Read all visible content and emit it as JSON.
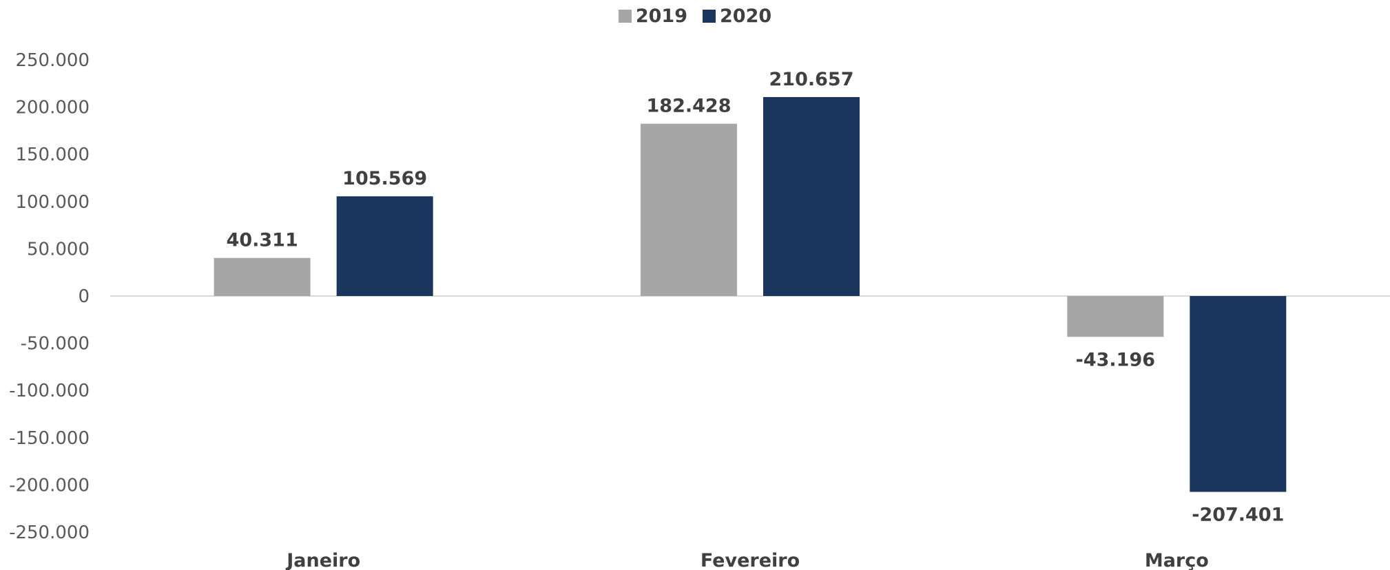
{
  "chart_data": {
    "type": "bar",
    "categories": [
      "Janeiro",
      "Fevereiro",
      "Março"
    ],
    "series": [
      {
        "name": "2019",
        "color": "#a6a6a6",
        "values": [
          40311,
          182428,
          -43196
        ],
        "labels": [
          "40.311",
          "182.428",
          "-43.196"
        ]
      },
      {
        "name": "2020",
        "color": "#1a365d",
        "values": [
          105569,
          210657,
          -207401
        ],
        "labels": [
          "105.569",
          "210.657",
          "-207.401"
        ]
      }
    ],
    "ylim": [
      -250000,
      250000
    ],
    "yticks": [
      250000,
      200000,
      150000,
      100000,
      50000,
      0,
      -50000,
      -100000,
      -150000,
      -200000,
      -250000
    ],
    "ytick_labels": [
      "250.000",
      "200.000",
      "150.000",
      "100.000",
      "50.000",
      "0",
      "-50.000",
      "-100.000",
      "-150.000",
      "-200.000",
      "-250.000"
    ],
    "legend_position": "top-center",
    "grid": false,
    "title": "",
    "xlabel": "",
    "ylabel": ""
  }
}
